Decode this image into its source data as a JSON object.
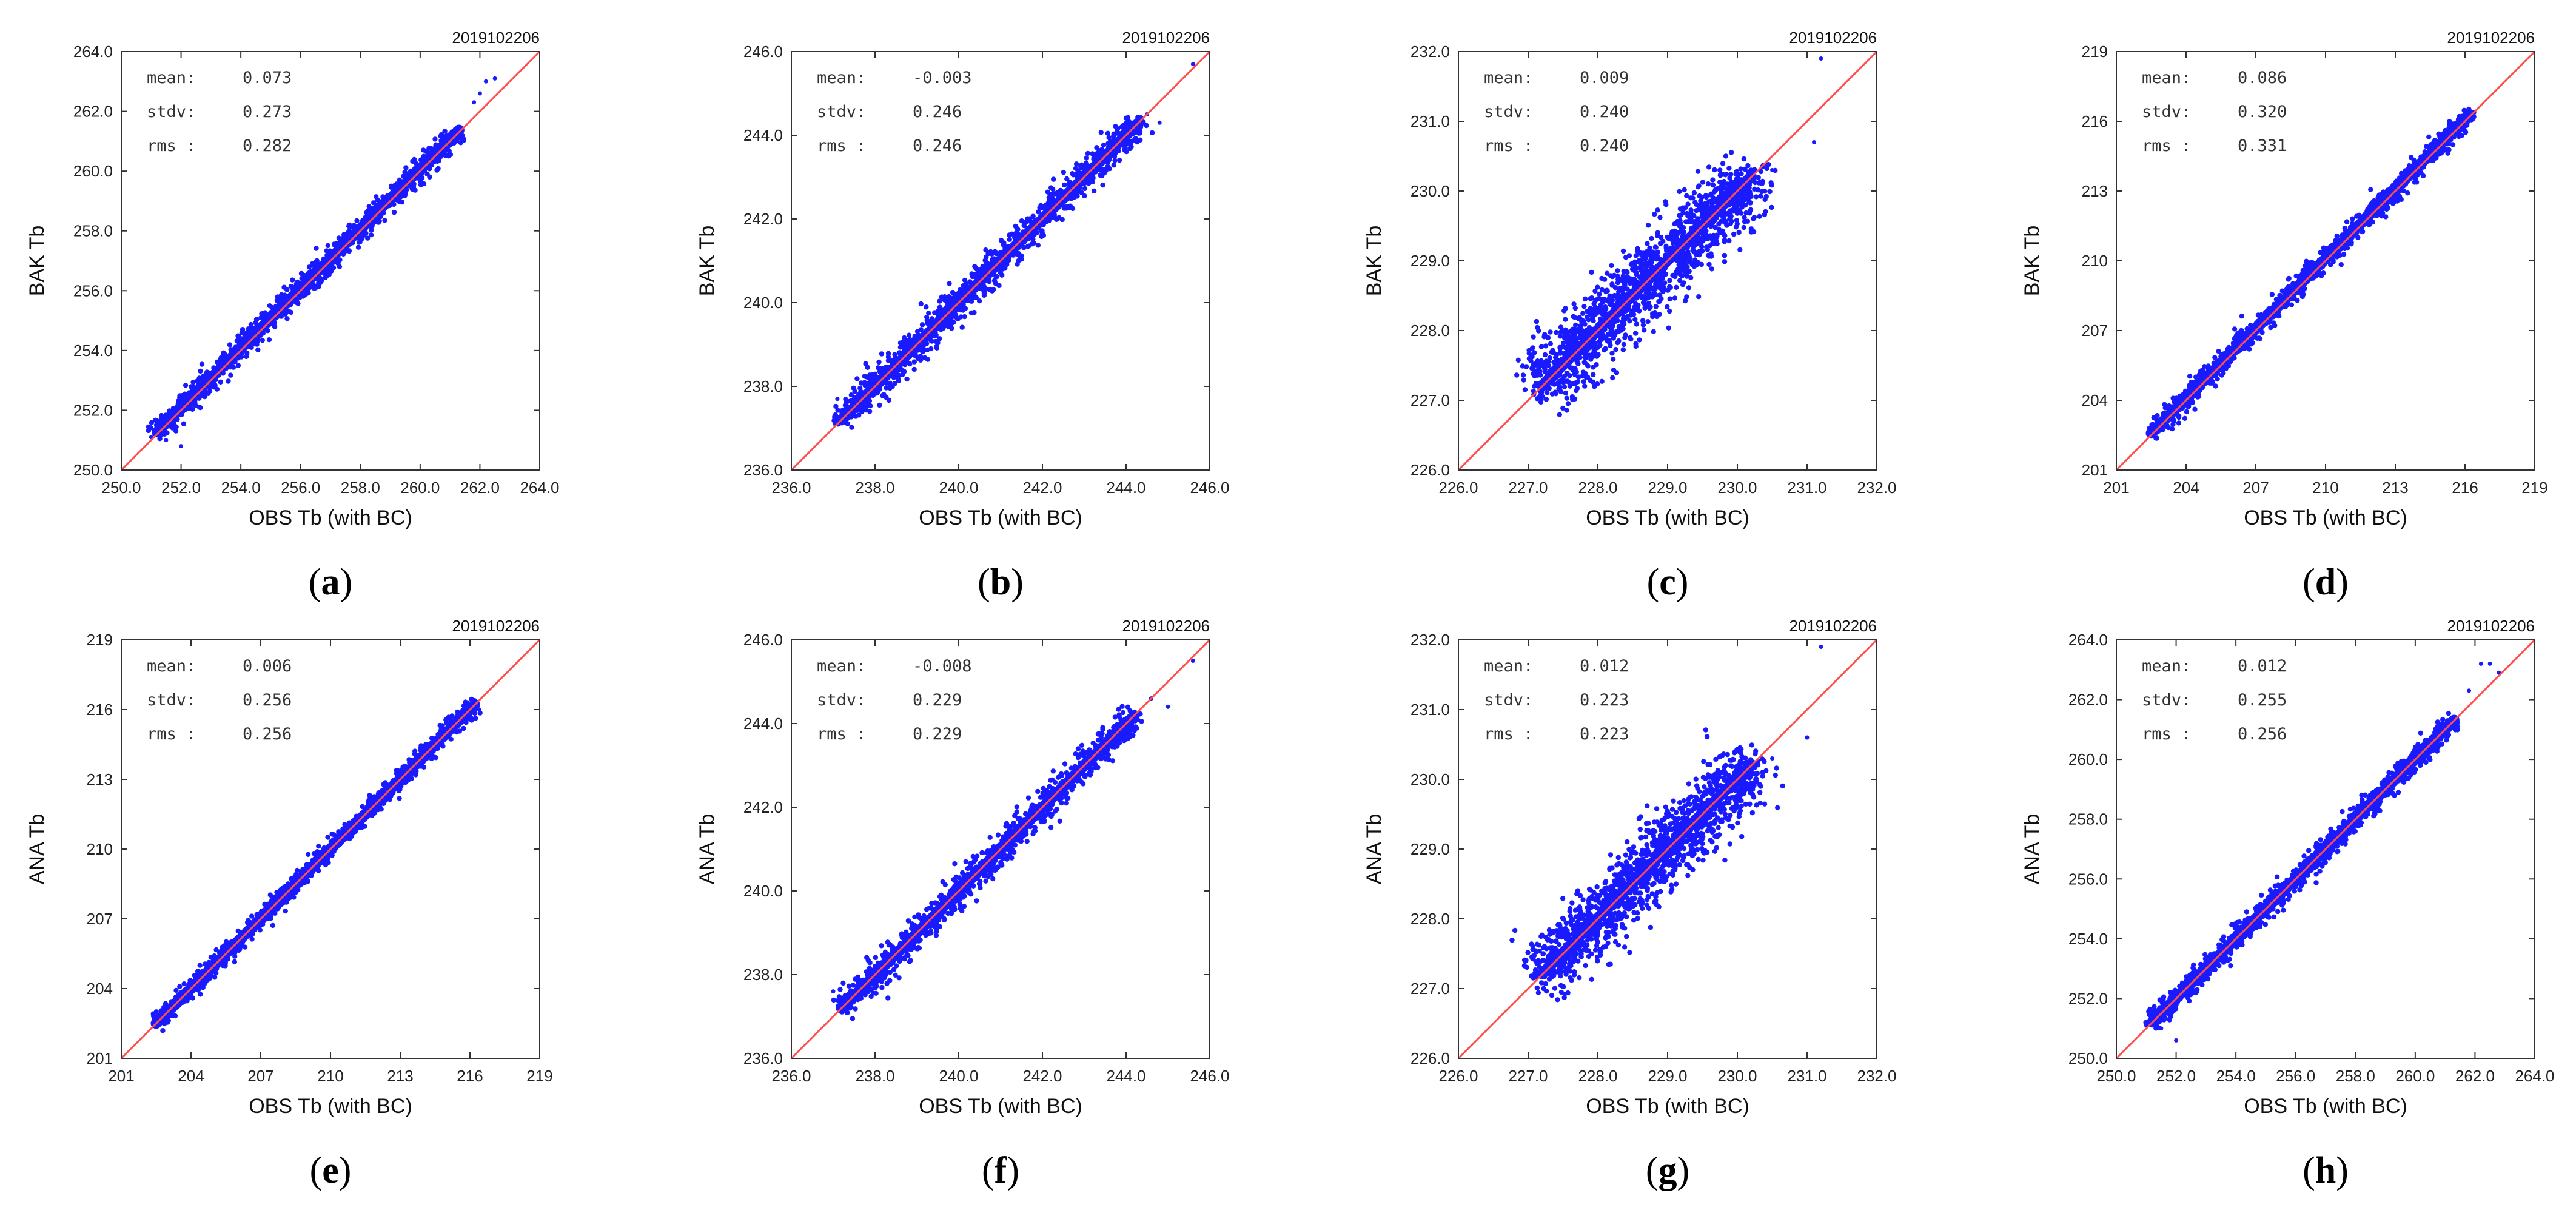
{
  "figure": {
    "panels_order": [
      "a",
      "b",
      "c",
      "d",
      "e",
      "f",
      "g",
      "h"
    ]
  },
  "chart_data": [
    {
      "panel": "a",
      "label_open": "(",
      "label_letter": "a",
      "label_close": ")",
      "type": "scatter",
      "date": "2019102206",
      "xlabel": "OBS Tb (with BC)",
      "ylabel": "BAK Tb",
      "xlim": [
        250,
        264
      ],
      "ylim": [
        250,
        264
      ],
      "x_ticks": [
        250,
        252,
        254,
        256,
        258,
        260,
        262,
        264
      ],
      "x_tick_labels": [
        "250.0",
        "252.0",
        "254.0",
        "256.0",
        "258.0",
        "260.0",
        "262.0",
        "264.0"
      ],
      "y_ticks": [
        250,
        252,
        254,
        256,
        258,
        260,
        262,
        264
      ],
      "y_tick_labels": [
        "250.0",
        "252.0",
        "254.0",
        "256.0",
        "258.0",
        "260.0",
        "262.0",
        "264.0"
      ],
      "stats": [
        {
          "name": "mean:",
          "value": "0.073"
        },
        {
          "name": "stdv:",
          "value": "0.273"
        },
        {
          "name": "rms :",
          "value": "0.282"
        }
      ],
      "identity_line": [
        [
          250,
          250
        ],
        [
          264,
          264
        ]
      ],
      "cloud": {
        "x_start": 251.2,
        "x_end": 261.3,
        "offset": 0.073,
        "spread": 0.24,
        "count": 1100
      },
      "outliers": [
        [
          251.0,
          251.1
        ],
        [
          251.5,
          251.0
        ],
        [
          252.0,
          250.8
        ],
        [
          251.8,
          252.0
        ],
        [
          261.8,
          262.3
        ],
        [
          262.2,
          263.0
        ],
        [
          262.5,
          263.1
        ],
        [
          262.0,
          262.6
        ]
      ]
    },
    {
      "panel": "b",
      "label_open": "(",
      "label_letter": "b",
      "label_close": ")",
      "type": "scatter",
      "date": "2019102206",
      "xlabel": "OBS Tb (with BC)",
      "ylabel": "BAK Tb",
      "xlim": [
        236,
        246
      ],
      "ylim": [
        236,
        246
      ],
      "x_ticks": [
        236,
        238,
        240,
        242,
        244,
        246
      ],
      "x_tick_labels": [
        "236.0",
        "238.0",
        "240.0",
        "242.0",
        "244.0",
        "246.0"
      ],
      "y_ticks": [
        236,
        238,
        240,
        242,
        244,
        246
      ],
      "y_tick_labels": [
        "236.0",
        "238.0",
        "240.0",
        "242.0",
        "244.0",
        "246.0"
      ],
      "stats": [
        {
          "name": "mean:",
          "value": "-0.003"
        },
        {
          "name": "stdv:",
          "value": "0.246"
        },
        {
          "name": "rms :",
          "value": "0.246"
        }
      ],
      "identity_line": [
        [
          236,
          236
        ],
        [
          246,
          246
        ]
      ],
      "cloud": {
        "x_start": 237.2,
        "x_end": 244.3,
        "offset": -0.003,
        "spread": 0.24,
        "count": 1100
      },
      "outliers": [
        [
          237.1,
          237.7
        ],
        [
          237.3,
          237.4
        ],
        [
          244.5,
          244.5
        ],
        [
          244.8,
          244.3
        ],
        [
          245.6,
          245.7
        ]
      ]
    },
    {
      "panel": "c",
      "label_open": "(",
      "label_letter": "c",
      "label_close": ")",
      "type": "scatter",
      "date": "2019102206",
      "xlabel": "OBS Tb (with BC)",
      "ylabel": "BAK Tb",
      "xlim": [
        226,
        232
      ],
      "ylim": [
        226,
        232
      ],
      "x_ticks": [
        226,
        227,
        228,
        229,
        230,
        231,
        232
      ],
      "x_tick_labels": [
        "226.0",
        "227.0",
        "228.0",
        "229.0",
        "230.0",
        "231.0",
        "232.0"
      ],
      "y_ticks": [
        226,
        227,
        228,
        229,
        230,
        231,
        232
      ],
      "y_tick_labels": [
        "226.0",
        "227.0",
        "228.0",
        "229.0",
        "230.0",
        "231.0",
        "232.0"
      ],
      "stats": [
        {
          "name": "mean:",
          "value": "0.009"
        },
        {
          "name": "stdv:",
          "value": "0.240"
        },
        {
          "name": "rms :",
          "value": "0.240"
        }
      ],
      "identity_line": [
        [
          226,
          226
        ],
        [
          232,
          232
        ]
      ],
      "cloud": {
        "x_start": 227.2,
        "x_end": 230.2,
        "offset": 0.009,
        "spread": 0.32,
        "count": 1400
      },
      "outliers": [
        [
          227.1,
          227.5
        ],
        [
          230.5,
          230.3
        ],
        [
          231.1,
          230.7
        ],
        [
          231.2,
          231.9
        ]
      ]
    },
    {
      "panel": "d",
      "label_open": "(",
      "label_letter": "d",
      "label_close": ")",
      "type": "scatter",
      "date": "2019102206",
      "xlabel": "OBS Tb (with BC)",
      "ylabel": "BAK Tb",
      "xlim": [
        201,
        219
      ],
      "ylim": [
        201,
        219
      ],
      "x_ticks": [
        201,
        204,
        207,
        210,
        213,
        216,
        219
      ],
      "x_tick_labels": [
        "201",
        "204",
        "207",
        "210",
        "213",
        "216",
        "219"
      ],
      "y_ticks": [
        201,
        204,
        207,
        210,
        213,
        216,
        219
      ],
      "y_tick_labels": [
        "201",
        "204",
        "207",
        "210",
        "213",
        "216",
        "219"
      ],
      "stats": [
        {
          "name": "mean:",
          "value": "0.086"
        },
        {
          "name": "stdv:",
          "value": "0.320"
        },
        {
          "name": "rms :",
          "value": "0.331"
        }
      ],
      "identity_line": [
        [
          201,
          201
        ],
        [
          219,
          219
        ]
      ],
      "cloud": {
        "x_start": 202.5,
        "x_end": 216.2,
        "offset": 0.086,
        "spread": 0.28,
        "count": 1100
      },
      "outliers": [
        [
          202.4,
          202.8
        ],
        [
          216.4,
          216.2
        ]
      ]
    },
    {
      "panel": "e",
      "label_open": "(",
      "label_letter": "e",
      "label_close": ")",
      "type": "scatter",
      "date": "2019102206",
      "xlabel": "OBS Tb (with BC)",
      "ylabel": "ANA Tb",
      "xlim": [
        201,
        219
      ],
      "ylim": [
        201,
        219
      ],
      "x_ticks": [
        201,
        204,
        207,
        210,
        213,
        216,
        219
      ],
      "x_tick_labels": [
        "201",
        "204",
        "207",
        "210",
        "213",
        "216",
        "219"
      ],
      "y_ticks": [
        201,
        204,
        207,
        210,
        213,
        216,
        219
      ],
      "y_tick_labels": [
        "201",
        "204",
        "207",
        "210",
        "213",
        "216",
        "219"
      ],
      "stats": [
        {
          "name": "mean:",
          "value": "0.006"
        },
        {
          "name": "stdv:",
          "value": "0.256"
        },
        {
          "name": "rms :",
          "value": "0.256"
        }
      ],
      "identity_line": [
        [
          201,
          201
        ],
        [
          219,
          219
        ]
      ],
      "cloud": {
        "x_start": 202.5,
        "x_end": 216.2,
        "offset": 0.006,
        "spread": 0.24,
        "count": 1100
      },
      "outliers": [
        [
          202.4,
          202.7
        ],
        [
          216.4,
          216.0
        ]
      ]
    },
    {
      "panel": "f",
      "label_open": "(",
      "label_letter": "f",
      "label_close": ")",
      "type": "scatter",
      "date": "2019102206",
      "xlabel": "OBS Tb (with BC)",
      "ylabel": "ANA Tb",
      "xlim": [
        236,
        246
      ],
      "ylim": [
        236,
        246
      ],
      "x_ticks": [
        236,
        238,
        240,
        242,
        244,
        246
      ],
      "x_tick_labels": [
        "236.0",
        "238.0",
        "240.0",
        "242.0",
        "244.0",
        "246.0"
      ],
      "y_ticks": [
        236,
        238,
        240,
        242,
        244,
        246
      ],
      "y_tick_labels": [
        "236.0",
        "238.0",
        "240.0",
        "242.0",
        "244.0",
        "246.0"
      ],
      "stats": [
        {
          "name": "mean:",
          "value": "-0.008"
        },
        {
          "name": "stdv:",
          "value": "0.229"
        },
        {
          "name": "rms :",
          "value": "0.229"
        }
      ],
      "identity_line": [
        [
          236,
          236
        ],
        [
          246,
          246
        ]
      ],
      "cloud": {
        "x_start": 237.2,
        "x_end": 244.2,
        "offset": -0.008,
        "spread": 0.22,
        "count": 1100
      },
      "outliers": [
        [
          237.0,
          237.6
        ],
        [
          237.3,
          237.3
        ],
        [
          244.6,
          244.6
        ],
        [
          245.0,
          244.4
        ],
        [
          245.6,
          245.5
        ]
      ]
    },
    {
      "panel": "g",
      "label_open": "(",
      "label_letter": "g",
      "label_close": ")",
      "type": "scatter",
      "date": "2019102206",
      "xlabel": "OBS Tb (with BC)",
      "ylabel": "ANA Tb",
      "xlim": [
        226,
        232
      ],
      "ylim": [
        226,
        232
      ],
      "x_ticks": [
        226,
        227,
        228,
        229,
        230,
        231,
        232
      ],
      "x_tick_labels": [
        "226.0",
        "227.0",
        "228.0",
        "229.0",
        "230.0",
        "231.0",
        "232.0"
      ],
      "y_ticks": [
        226,
        227,
        228,
        229,
        230,
        231,
        232
      ],
      "y_tick_labels": [
        "226.0",
        "227.0",
        "228.0",
        "229.0",
        "230.0",
        "231.0",
        "232.0"
      ],
      "stats": [
        {
          "name": "mean:",
          "value": "0.012"
        },
        {
          "name": "stdv:",
          "value": "0.223"
        },
        {
          "name": "rms :",
          "value": "0.223"
        }
      ],
      "identity_line": [
        [
          226,
          226
        ],
        [
          232,
          232
        ]
      ],
      "cloud": {
        "x_start": 227.2,
        "x_end": 230.2,
        "offset": 0.012,
        "spread": 0.3,
        "count": 1400
      },
      "outliers": [
        [
          227.1,
          227.4
        ],
        [
          230.5,
          230.3
        ],
        [
          231.0,
          230.6
        ],
        [
          231.2,
          231.9
        ]
      ]
    },
    {
      "panel": "h",
      "label_open": "(",
      "label_letter": "h",
      "label_close": ")",
      "type": "scatter",
      "date": "2019102206",
      "xlabel": "OBS Tb (with BC)",
      "ylabel": "ANA Tb",
      "xlim": [
        250,
        264
      ],
      "ylim": [
        250,
        264
      ],
      "x_ticks": [
        250,
        252,
        254,
        256,
        258,
        260,
        262,
        264
      ],
      "x_tick_labels": [
        "250.0",
        "252.0",
        "254.0",
        "256.0",
        "258.0",
        "260.0",
        "262.0",
        "264.0"
      ],
      "y_ticks": [
        250,
        252,
        254,
        256,
        258,
        260,
        262,
        264
      ],
      "y_tick_labels": [
        "250.0",
        "252.0",
        "254.0",
        "256.0",
        "258.0",
        "260.0",
        "262.0",
        "264.0"
      ],
      "stats": [
        {
          "name": "mean:",
          "value": "0.012"
        },
        {
          "name": "stdv:",
          "value": "0.255"
        },
        {
          "name": "rms :",
          "value": "0.256"
        }
      ],
      "identity_line": [
        [
          250,
          250
        ],
        [
          264,
          264
        ]
      ],
      "cloud": {
        "x_start": 251.2,
        "x_end": 261.3,
        "offset": 0.012,
        "spread": 0.23,
        "count": 1100
      },
      "outliers": [
        [
          251.0,
          251.1
        ],
        [
          251.5,
          251.0
        ],
        [
          252.0,
          250.6
        ],
        [
          261.8,
          262.3
        ],
        [
          262.2,
          263.2
        ],
        [
          262.5,
          263.2
        ],
        [
          262.8,
          262.9
        ]
      ]
    }
  ],
  "colors": {
    "points": "#1a1aff",
    "identity_line": "#ff4d4d",
    "axis": "#333333"
  }
}
